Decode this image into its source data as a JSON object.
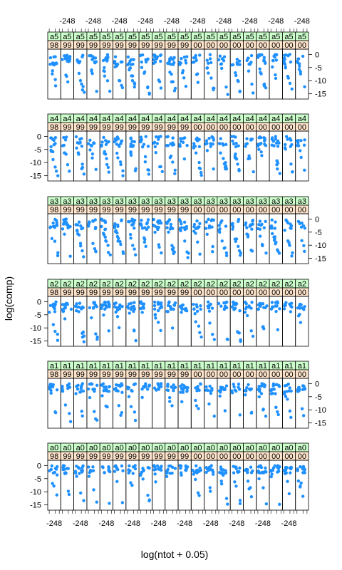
{
  "chart_data": {
    "type": "scatter",
    "title": "",
    "xlabel": "log(ntot + 0.05)",
    "ylabel": "log(comp)",
    "x_tick_labels": [
      "-2",
      "4",
      "8"
    ],
    "y_tick_labels": [
      "0",
      "-5",
      "-10",
      "-15"
    ],
    "x_ticks": [
      -2,
      4,
      8
    ],
    "y_ticks": [
      0,
      -5,
      -10,
      -15
    ],
    "xlim": [
      -3.5,
      9.5
    ],
    "ylim": [
      -17,
      2
    ],
    "strip_outer": [
      "a0",
      "a1",
      "a2",
      "a3",
      "a4",
      "a5"
    ],
    "strip_inner": [
      "98",
      "99",
      "99",
      "99",
      "99",
      "99",
      "99",
      "99",
      "99",
      "99",
      "99",
      "00",
      "00",
      "00",
      "00",
      "00",
      "00",
      "00",
      "00",
      "00"
    ],
    "strip_inner_shown": [
      "98",
      "99",
      "99",
      "99",
      "99",
      "99",
      "99",
      "99",
      "99",
      "99",
      "99",
      "00",
      "00",
      "00",
      "00",
      "00",
      "00",
      "00",
      "00",
      "00"
    ],
    "panel_rows": 6,
    "panel_cols": 20,
    "colors": {
      "points": "#1e90ff",
      "strip_outer_bg": "#ccffcc",
      "strip_inner_bg": "#ffe5cc",
      "axis": "#000000"
    }
  }
}
